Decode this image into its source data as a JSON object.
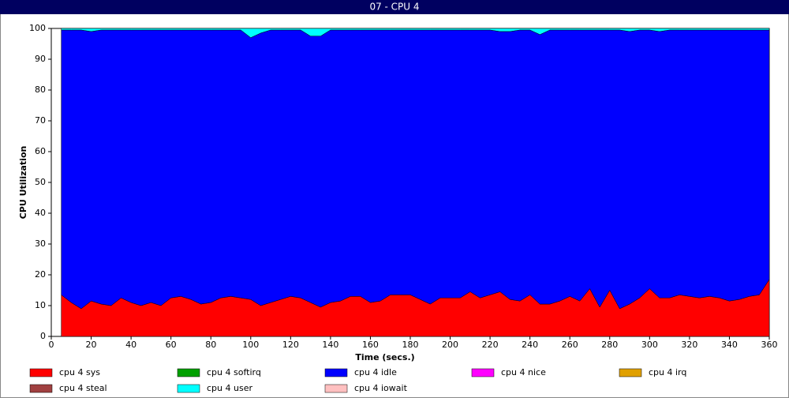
{
  "chart_data": {
    "type": "stacked_area",
    "title": "07 - CPU 4",
    "x_label": "Time (secs.)",
    "y_label": "CPU Utilization",
    "x": [
      5,
      10,
      15,
      20,
      25,
      30,
      35,
      40,
      45,
      50,
      55,
      60,
      65,
      70,
      75,
      80,
      85,
      90,
      95,
      100,
      105,
      110,
      115,
      120,
      125,
      130,
      135,
      140,
      145,
      150,
      155,
      160,
      165,
      170,
      175,
      180,
      185,
      190,
      195,
      200,
      205,
      210,
      215,
      220,
      225,
      230,
      235,
      240,
      245,
      250,
      255,
      260,
      265,
      270,
      275,
      280,
      285,
      290,
      295,
      300,
      305,
      310,
      315,
      320,
      325,
      330,
      335,
      340,
      345,
      350,
      355,
      360
    ],
    "xlim": [
      0,
      360
    ],
    "xticks": [
      0,
      20,
      40,
      60,
      80,
      100,
      120,
      140,
      160,
      180,
      200,
      220,
      240,
      260,
      280,
      300,
      320,
      340,
      360
    ],
    "ylim": [
      0,
      100
    ],
    "yticks": [
      0,
      10,
      20,
      30,
      40,
      50,
      60,
      70,
      80,
      90,
      100
    ],
    "series": [
      {
        "name": "cpu 4 sys",
        "color": "#ff0000",
        "values": [
          13.5,
          11,
          9,
          11.5,
          10.5,
          10,
          12.5,
          11,
          10,
          11,
          10,
          12.5,
          13,
          12,
          10.5,
          11,
          12.5,
          13,
          12.5,
          12,
          10,
          11,
          12,
          13,
          12.5,
          11,
          9.5,
          11,
          11.5,
          13,
          13,
          11,
          11.5,
          13.5,
          13.5,
          13.5,
          12,
          10.5,
          12.5,
          12.5,
          12.5,
          14.5,
          12.5,
          13.5,
          14.5,
          12,
          11.5,
          13.5,
          10.5,
          10.5,
          11.5,
          13,
          11.5,
          15.5,
          9.5,
          15,
          9,
          10.5,
          12.5,
          15.5,
          12.5,
          12.5,
          13.5,
          13,
          12.5,
          13,
          12.5,
          11.5,
          12,
          13,
          13.5,
          18.5
        ]
      },
      {
        "name": "cpu 4 softirq",
        "color": "#00a000",
        "values": [
          0,
          0,
          0,
          0,
          0,
          0,
          0,
          0,
          0,
          0,
          0,
          0,
          0,
          0,
          0,
          0,
          0,
          0,
          0,
          0,
          0,
          0,
          0,
          0,
          0,
          0,
          0,
          0,
          0,
          0,
          0,
          0,
          0,
          0,
          0,
          0,
          0,
          0,
          0,
          0,
          0,
          0,
          0,
          0,
          0,
          0,
          0,
          0,
          0,
          0,
          0,
          0,
          0,
          0,
          0,
          0,
          0,
          0,
          0,
          0,
          0,
          0,
          0,
          0,
          0,
          0,
          0,
          0,
          0,
          0,
          0,
          0
        ]
      },
      {
        "name": "cpu 4 idle",
        "color": "#0000ff",
        "values": [
          86,
          88.5,
          90.5,
          87.5,
          89,
          89.5,
          87,
          88.5,
          89.5,
          88.5,
          89.5,
          87,
          86.5,
          87.5,
          89,
          88.5,
          87,
          86.5,
          87,
          85,
          88.5,
          88.5,
          87.5,
          86.5,
          87,
          86.5,
          88,
          88.5,
          88,
          86.5,
          86.5,
          88.5,
          88,
          86,
          86,
          86,
          87.5,
          89,
          87,
          87,
          87,
          85,
          87,
          86,
          84.5,
          87,
          88,
          86,
          87.5,
          89,
          88,
          86.5,
          88,
          84,
          90,
          84.5,
          90.5,
          88.5,
          87,
          84,
          86.5,
          87,
          86,
          86.5,
          87,
          86.5,
          87,
          88,
          87.5,
          86.5,
          86,
          81
        ]
      },
      {
        "name": "cpu 4 nice",
        "color": "#ff00ff",
        "values": [
          0,
          0,
          0,
          0,
          0,
          0,
          0,
          0,
          0,
          0,
          0,
          0,
          0,
          0,
          0,
          0,
          0,
          0,
          0,
          0,
          0,
          0,
          0,
          0,
          0,
          0,
          0,
          0,
          0,
          0,
          0,
          0,
          0,
          0,
          0,
          0,
          0,
          0,
          0,
          0,
          0,
          0,
          0,
          0,
          0,
          0,
          0,
          0,
          0,
          0,
          0,
          0,
          0,
          0,
          0,
          0,
          0,
          0,
          0,
          0,
          0,
          0,
          0,
          0,
          0,
          0,
          0,
          0,
          0,
          0,
          0,
          0
        ]
      },
      {
        "name": "cpu 4 irq",
        "color": "#e0a000",
        "values": [
          0,
          0,
          0,
          0,
          0,
          0,
          0,
          0,
          0,
          0,
          0,
          0,
          0,
          0,
          0,
          0,
          0,
          0,
          0,
          0,
          0,
          0,
          0,
          0,
          0,
          0,
          0,
          0,
          0,
          0,
          0,
          0,
          0,
          0,
          0,
          0,
          0,
          0,
          0,
          0,
          0,
          0,
          0,
          0,
          0,
          0,
          0,
          0,
          0,
          0,
          0,
          0,
          0,
          0,
          0,
          0,
          0,
          0,
          0,
          0,
          0,
          0,
          0,
          0,
          0,
          0,
          0,
          0,
          0,
          0,
          0,
          0
        ]
      },
      {
        "name": "cpu 4 steal",
        "color": "#a04040",
        "values": [
          0,
          0,
          0,
          0,
          0,
          0,
          0,
          0,
          0,
          0,
          0,
          0,
          0,
          0,
          0,
          0,
          0,
          0,
          0,
          0,
          0,
          0,
          0,
          0,
          0,
          0,
          0,
          0,
          0,
          0,
          0,
          0,
          0,
          0,
          0,
          0,
          0,
          0,
          0,
          0,
          0,
          0,
          0,
          0,
          0,
          0,
          0,
          0,
          0,
          0,
          0,
          0,
          0,
          0,
          0,
          0,
          0,
          0,
          0,
          0,
          0,
          0,
          0,
          0,
          0,
          0,
          0,
          0,
          0,
          0,
          0,
          0
        ]
      },
      {
        "name": "cpu 4 user",
        "color": "#00ffff",
        "values": [
          0.5,
          0.5,
          0.5,
          1,
          0.5,
          0.5,
          0.5,
          0.5,
          0.5,
          0.5,
          0.5,
          0.5,
          0.5,
          0.5,
          0.5,
          0.5,
          0.5,
          0.5,
          0.5,
          3,
          1.5,
          0.5,
          0.5,
          0.5,
          0.5,
          2.5,
          2.5,
          0.5,
          0.5,
          0.5,
          0.5,
          0.5,
          0.5,
          0.5,
          0.5,
          0.5,
          0.5,
          0.5,
          0.5,
          0.5,
          0.5,
          0.5,
          0.5,
          0.5,
          1,
          1,
          0.5,
          0.5,
          2,
          0.5,
          0.5,
          0.5,
          0.5,
          0.5,
          0.5,
          0.5,
          0.5,
          1,
          0.5,
          0.5,
          1,
          0.5,
          0.5,
          0.5,
          0.5,
          0.5,
          0.5,
          0.5,
          0.5,
          0.5,
          0.5,
          0.5
        ]
      },
      {
        "name": "cpu 4 iowait",
        "color": "#ffc0c0",
        "values": [
          0,
          0,
          0,
          0,
          0,
          0,
          0,
          0,
          0,
          0,
          0,
          0,
          0,
          0,
          0,
          0,
          0,
          0,
          0,
          0,
          0,
          0,
          0,
          0,
          0,
          0,
          0,
          0,
          0,
          0,
          0,
          0,
          0,
          0,
          0,
          0,
          0,
          0,
          0,
          0,
          0,
          0,
          0,
          0,
          0,
          0,
          0,
          0,
          0,
          0,
          0,
          0,
          0,
          0,
          0,
          0,
          0,
          0,
          0,
          0,
          0,
          0,
          0,
          0,
          0,
          0,
          0,
          0,
          0,
          0,
          0,
          0
        ]
      }
    ]
  }
}
